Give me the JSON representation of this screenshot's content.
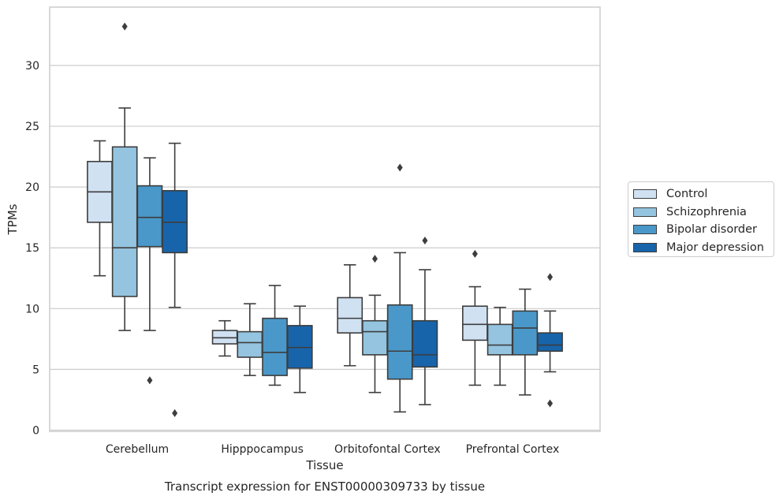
{
  "chart_data": {
    "type": "box",
    "title": "Transcript expression for ENST00000309733 by tissue",
    "xlabel": "Tissue",
    "ylabel": "TPMs",
    "ylim": [
      -0.1,
      34.8
    ],
    "yticks": [
      0,
      5,
      10,
      15,
      20,
      25,
      30
    ],
    "grid": "horizontal",
    "legend_position": "right",
    "categories": [
      "Cerebellum",
      "Hipppocampus",
      "Orbitofontal Cortex",
      "Prefrontal Cortex"
    ],
    "series": [
      {
        "name": "Control",
        "color": "#d0e1f2",
        "boxes": [
          {
            "whislo": 12.7,
            "q1": 17.1,
            "med": 19.6,
            "q3": 22.1,
            "whishi": 23.8,
            "fliers": []
          },
          {
            "whislo": 6.1,
            "q1": 7.1,
            "med": 7.6,
            "q3": 8.2,
            "whishi": 9.0,
            "fliers": []
          },
          {
            "whislo": 5.3,
            "q1": 8.0,
            "med": 9.2,
            "q3": 10.9,
            "whishi": 13.6,
            "fliers": []
          },
          {
            "whislo": 3.7,
            "q1": 7.4,
            "med": 8.7,
            "q3": 10.2,
            "whishi": 11.8,
            "fliers": [
              14.5
            ]
          }
        ]
      },
      {
        "name": "Schizophrenia",
        "color": "#94c4df",
        "boxes": [
          {
            "whislo": 8.2,
            "q1": 11.0,
            "med": 15.0,
            "q3": 23.3,
            "whishi": 26.5,
            "fliers": [
              33.2
            ]
          },
          {
            "whislo": 4.5,
            "q1": 6.0,
            "med": 7.2,
            "q3": 8.1,
            "whishi": 10.4,
            "fliers": []
          },
          {
            "whislo": 3.1,
            "q1": 6.2,
            "med": 8.1,
            "q3": 9.0,
            "whishi": 11.1,
            "fliers": [
              14.1
            ]
          },
          {
            "whislo": 3.7,
            "q1": 6.2,
            "med": 7.0,
            "q3": 8.7,
            "whishi": 10.1,
            "fliers": []
          }
        ]
      },
      {
        "name": "Bipolar disorder",
        "color": "#4a98c9",
        "boxes": [
          {
            "whislo": 8.2,
            "q1": 15.1,
            "med": 17.5,
            "q3": 20.1,
            "whishi": 22.4,
            "fliers": [
              4.1
            ]
          },
          {
            "whislo": 3.7,
            "q1": 4.5,
            "med": 6.4,
            "q3": 9.2,
            "whishi": 11.9,
            "fliers": []
          },
          {
            "whislo": 1.5,
            "q1": 4.2,
            "med": 6.5,
            "q3": 10.3,
            "whishi": 14.6,
            "fliers": [
              21.6
            ]
          },
          {
            "whislo": 2.9,
            "q1": 6.2,
            "med": 8.4,
            "q3": 9.8,
            "whishi": 11.6,
            "fliers": []
          }
        ]
      },
      {
        "name": "Major depression",
        "color": "#1764ab",
        "boxes": [
          {
            "whislo": 10.1,
            "q1": 14.6,
            "med": 17.1,
            "q3": 19.7,
            "whishi": 23.6,
            "fliers": [
              1.4
            ]
          },
          {
            "whislo": 3.1,
            "q1": 5.1,
            "med": 6.8,
            "q3": 8.6,
            "whishi": 10.2,
            "fliers": []
          },
          {
            "whislo": 2.1,
            "q1": 5.2,
            "med": 6.2,
            "q3": 9.0,
            "whishi": 13.2,
            "fliers": [
              15.6
            ]
          },
          {
            "whislo": 4.8,
            "q1": 6.5,
            "med": 7.0,
            "q3": 8.0,
            "whishi": 9.8,
            "fliers": [
              2.2,
              12.6
            ]
          }
        ]
      }
    ]
  }
}
